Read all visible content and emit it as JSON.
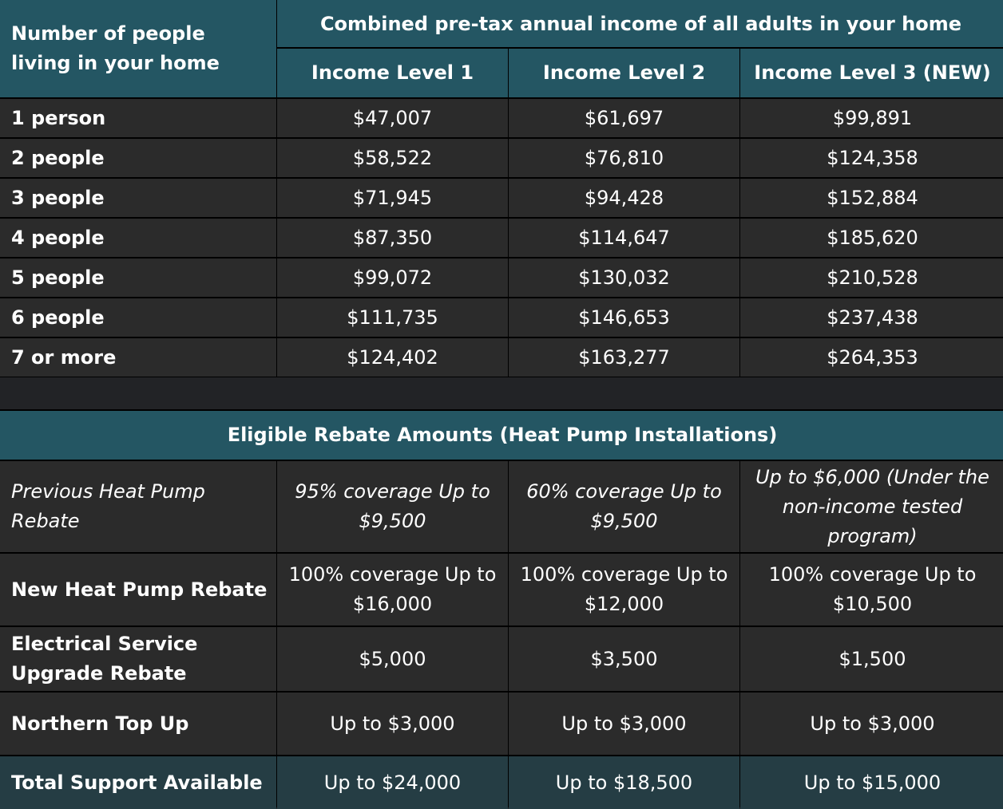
{
  "income_table": {
    "corner_label": "Number of people living in your home",
    "group_header": "Combined pre-tax annual income of all adults in your home",
    "columns": [
      "Income Level 1",
      "Income Level 2",
      "Income Level 3 (NEW)"
    ],
    "rows": [
      {
        "label": "1 person",
        "values": [
          "$47,007",
          "$61,697",
          "$99,891"
        ]
      },
      {
        "label": "2 people",
        "values": [
          "$58,522",
          "$76,810",
          "$124,358"
        ]
      },
      {
        "label": "3 people",
        "values": [
          "$71,945",
          "$94,428",
          "$152,884"
        ]
      },
      {
        "label": "4 people",
        "values": [
          "$87,350",
          "$114,647",
          "$185,620"
        ]
      },
      {
        "label": "5 people",
        "values": [
          "$99,072",
          "$130,032",
          "$210,528"
        ]
      },
      {
        "label": "6 people",
        "values": [
          "$111,735",
          "$146,653",
          "$237,438"
        ]
      },
      {
        "label": "7 or more",
        "values": [
          "$124,402",
          "$163,277",
          "$264,353"
        ]
      }
    ]
  },
  "rebate_table": {
    "title": "Eligible Rebate Amounts (Heat Pump Installations)",
    "rows": [
      {
        "label": "Previous Heat Pump Rebate",
        "values": [
          "95% coverage Up to $9,500",
          "60% coverage Up to $9,500",
          "Up to $6,000 (Under the non-income tested program)"
        ]
      },
      {
        "label": "New Heat Pump Rebate",
        "values": [
          "100% coverage Up to $16,000",
          "100% coverage Up to $12,000",
          "100% coverage Up to $10,500"
        ]
      },
      {
        "label": "Electrical Service Upgrade Rebate",
        "values": [
          "$5,000",
          "$3,500",
          "$1,500"
        ]
      },
      {
        "label": "Northern Top Up",
        "values": [
          "Up to $3,000",
          "Up to $3,000",
          "Up to $3,000"
        ]
      },
      {
        "label": "Total Support Available",
        "values": [
          "Up to $24,000",
          "Up to $18,500",
          "Up to $15,000"
        ]
      }
    ]
  }
}
